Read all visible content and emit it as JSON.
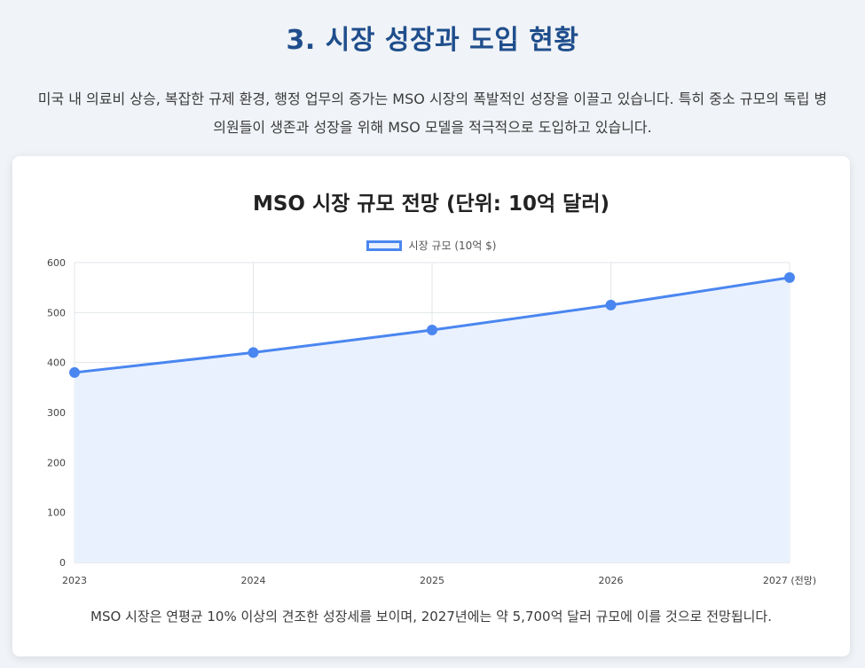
{
  "page": {
    "section_title": "3. 시장 성장과 도입 현황",
    "intro_text": "미국 내 의료비 상승, 복잡한 규제 환경, 행정 업무의 증가는 MSO 시장의 폭발적인 성장을 이끌고 있습니다. 특히 중소 규모의 독립 병의원들이 생존과 성장을 위해 MSO 모델을 적극적으로 도입하고 있습니다.",
    "caption": "MSO 시장은 연평균 10% 이상의 견조한 성장세를 보이며, 2027년에는 약 5,700억 달러 규모에 이를 것으로 전망됩니다."
  },
  "chart_data": {
    "type": "line",
    "title": "MSO 시장 규모 전망 (단위: 10억 달러)",
    "categories": [
      "2023",
      "2024",
      "2025",
      "2026",
      "2027 (전망)"
    ],
    "series": [
      {
        "name": "시장 규모 (10억 $)",
        "values": [
          380,
          420,
          465,
          515,
          570
        ]
      }
    ],
    "ylim": [
      0,
      600
    ],
    "yticks": [
      0,
      100,
      200,
      300,
      400,
      500,
      600
    ],
    "fill": true,
    "grid": true,
    "legend_position": "top-center",
    "colors": {
      "line": "#4a86f0",
      "fill": "#eaf1fe",
      "grid": "#e3e6ea"
    }
  }
}
